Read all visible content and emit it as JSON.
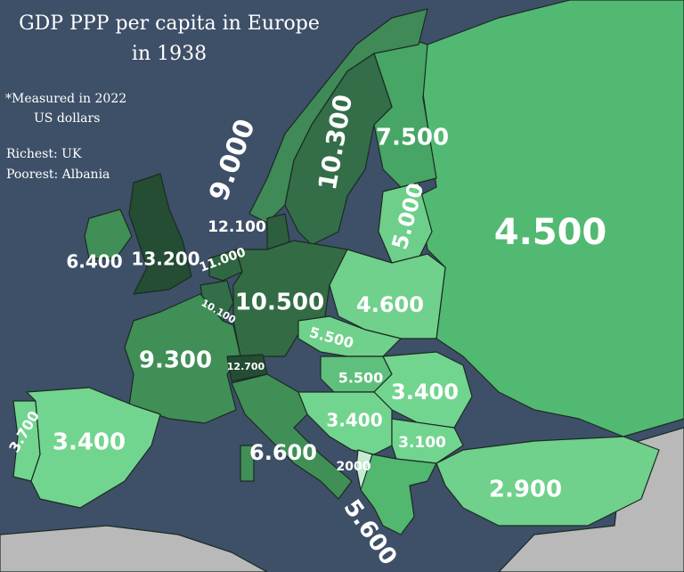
{
  "title": {
    "line1": "GDP PPP per capita in Europe",
    "line2": "in 1938"
  },
  "notes": {
    "measured_line1": "*Measured in 2022",
    "measured_line2": "US dollars",
    "richest": "Richest: UK",
    "poorest": "Poorest: Albania"
  },
  "colors": {
    "sea": "#3e5068",
    "neutral": "#b9b9b9"
  },
  "countries": [
    {
      "id": "norway",
      "value": "9.000",
      "color": "#3f8a57"
    },
    {
      "id": "sweden",
      "value": "10.300",
      "color": "#336e48"
    },
    {
      "id": "finland",
      "value": "7.500",
      "color": "#47a565"
    },
    {
      "id": "baltics",
      "value": "5.000",
      "color": "#6dcf89"
    },
    {
      "id": "ussr",
      "value": "4.500",
      "color": "#52b972"
    },
    {
      "id": "denmark",
      "value": "12.100",
      "color": "#2d5e3e"
    },
    {
      "id": "ireland",
      "value": "6.400",
      "color": "#3f8f57"
    },
    {
      "id": "uk",
      "value": "13.200",
      "color": "#244d33"
    },
    {
      "id": "netherlands",
      "value": "11.000",
      "color": "#2f6742"
    },
    {
      "id": "belgium",
      "value": "10.100",
      "color": "#336e48"
    },
    {
      "id": "germany",
      "value": "10.500",
      "color": "#336b45"
    },
    {
      "id": "poland",
      "value": "4.600",
      "color": "#6fd18b"
    },
    {
      "id": "czechoslovakia",
      "value": "5.500",
      "color": "#6fd18b"
    },
    {
      "id": "france",
      "value": "9.300",
      "color": "#3f8f57"
    },
    {
      "id": "switzerland",
      "value": "12.700",
      "color": "#244d33"
    },
    {
      "id": "hungary",
      "value": "5.500",
      "color": "#5fbf7d"
    },
    {
      "id": "romania",
      "value": "3.400",
      "color": "#72d58f"
    },
    {
      "id": "portugal",
      "value": "3.700",
      "color": "#72d58f"
    },
    {
      "id": "spain",
      "value": "3.400",
      "color": "#72d58f"
    },
    {
      "id": "yugoslavia",
      "value": "3.400",
      "color": "#72d58f"
    },
    {
      "id": "bulgaria",
      "value": "3.100",
      "color": "#72d58f"
    },
    {
      "id": "italy",
      "value": "6.600",
      "color": "#3f8f57"
    },
    {
      "id": "albania",
      "value": "2000",
      "color": "#c5ecd2"
    },
    {
      "id": "turkey",
      "value": "2.900",
      "color": "#6fd18b"
    },
    {
      "id": "greece",
      "value": "5.600",
      "color": "#52b76f"
    }
  ]
}
